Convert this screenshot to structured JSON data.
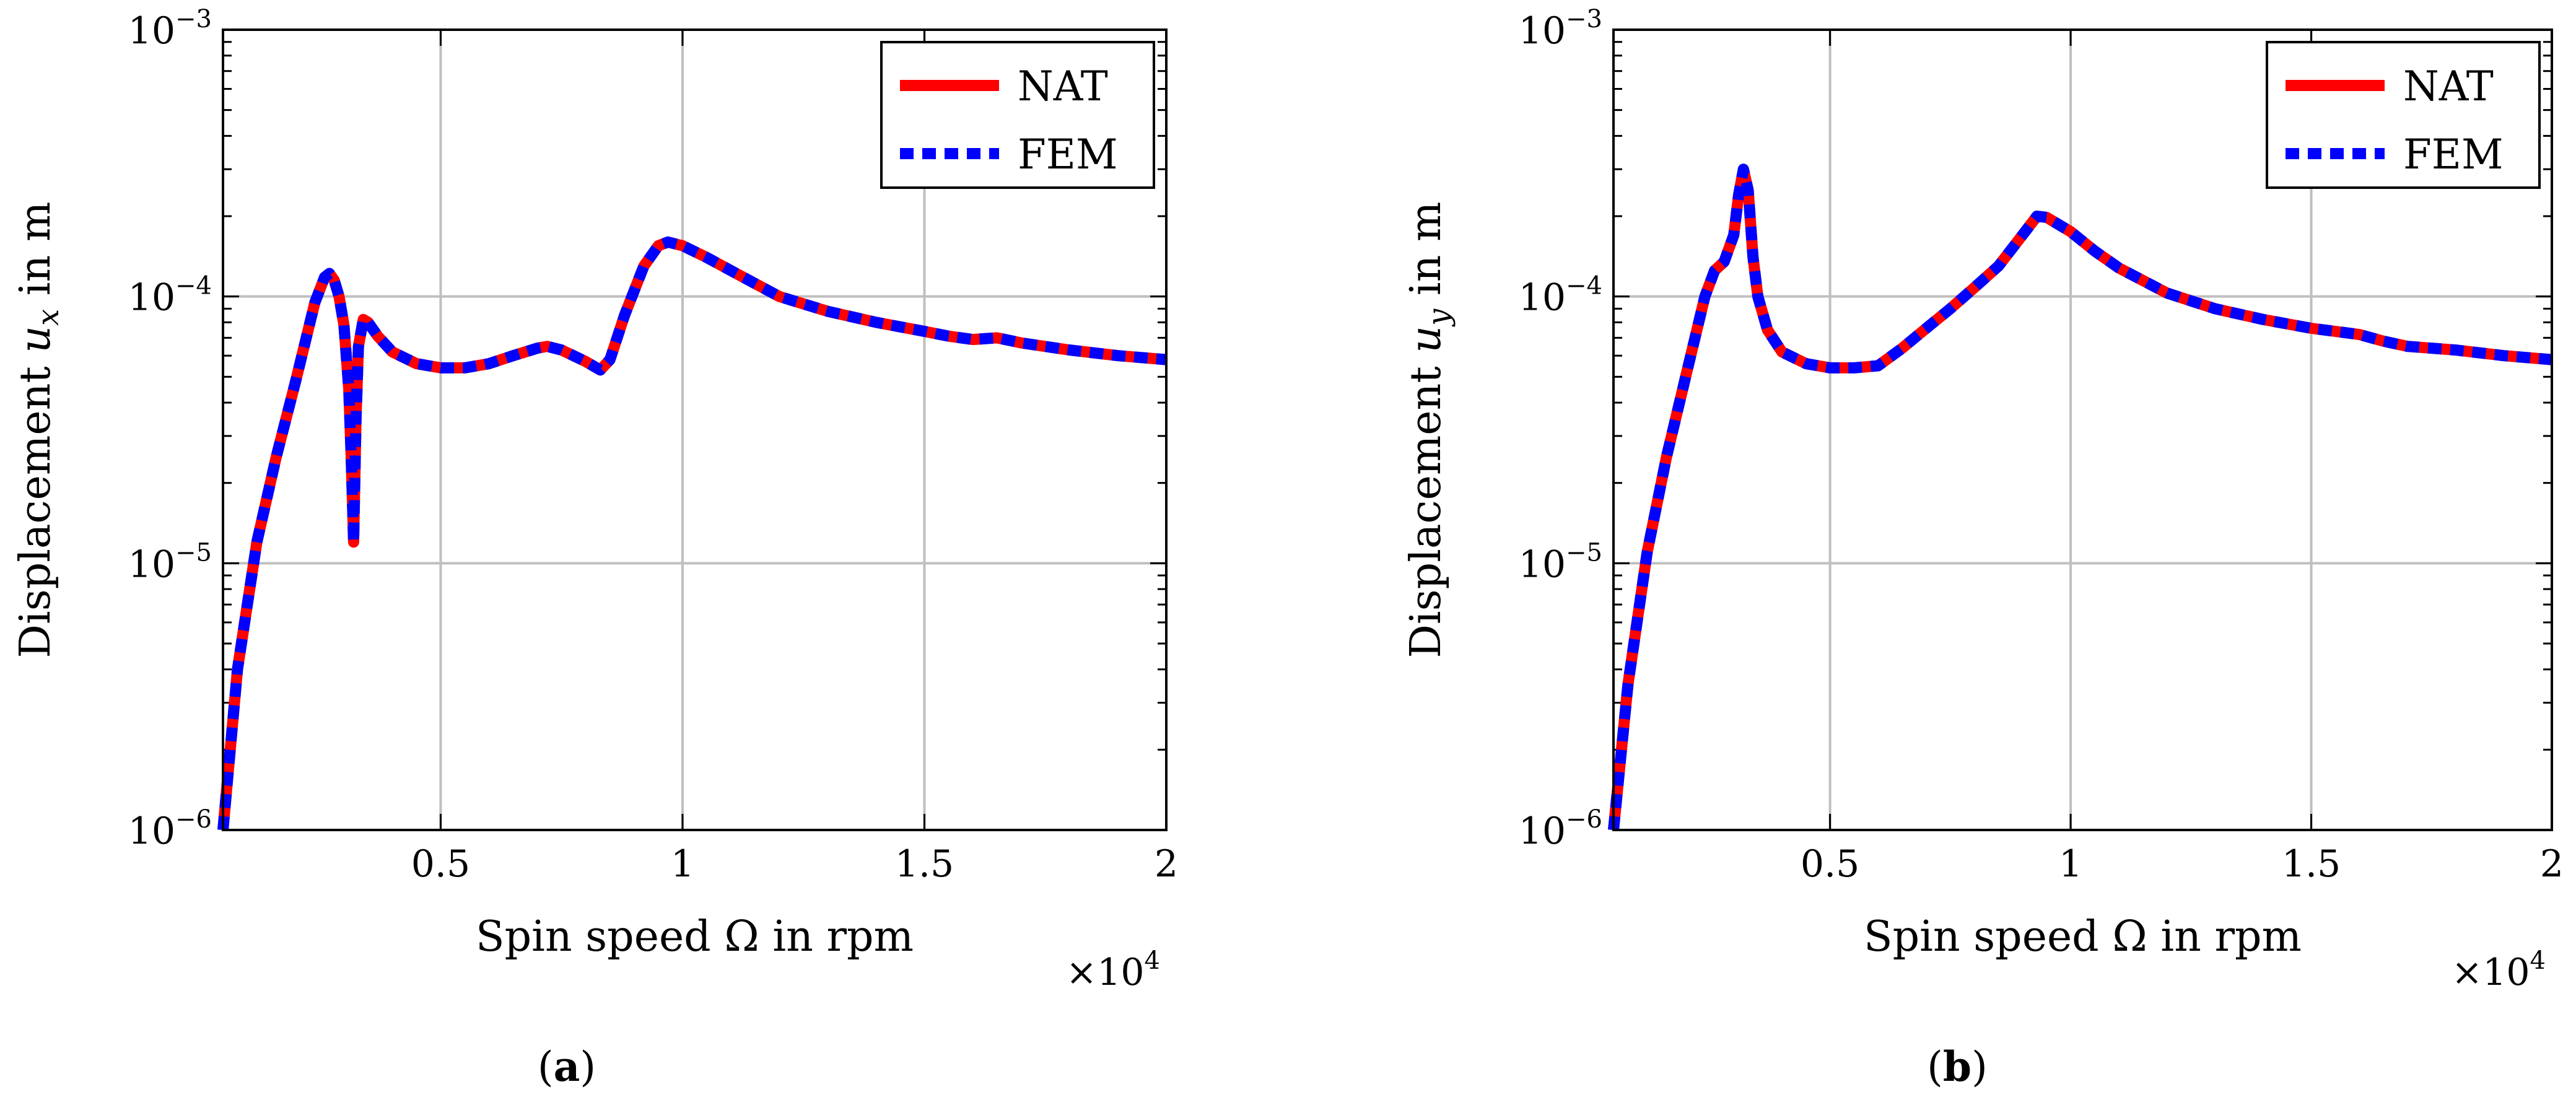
{
  "chart_data": [
    {
      "type": "line",
      "panel_label": "(a)",
      "xlabel": "Spin speed Ω in rpm",
      "ylabel_prefix": "Displacement ",
      "ylabel_symbol": "u",
      "ylabel_subscript": "x",
      "ylabel_suffix": " in m",
      "x_multiplier_label": "×10",
      "x_multiplier_exp": "4",
      "y_scale": "log",
      "xlim": [
        0.05,
        2.0
      ],
      "ylim": [
        1e-06,
        0.001
      ],
      "x_ticks": [
        0.5,
        1.0,
        1.5,
        2.0
      ],
      "x_tick_labels": [
        "0.5",
        "1",
        "1.5",
        "2"
      ],
      "y_ticks": [
        1e-06,
        1e-05,
        0.0001,
        0.001
      ],
      "y_tick_base": "10",
      "y_tick_exps": [
        "−6",
        "−5",
        "−4",
        "−3"
      ],
      "grid": true,
      "legend_position": "top-right",
      "series": [
        {
          "name": "NAT",
          "color": "#ff0000",
          "style": "solid",
          "x": [
            0.05,
            0.08,
            0.12,
            0.16,
            0.2,
            0.24,
            0.26,
            0.27,
            0.28,
            0.29,
            0.3,
            0.31,
            0.315,
            0.32,
            0.325,
            0.33,
            0.34,
            0.35,
            0.37,
            0.4,
            0.45,
            0.5,
            0.55,
            0.6,
            0.65,
            0.7,
            0.72,
            0.75,
            0.8,
            0.83,
            0.85,
            0.88,
            0.92,
            0.95,
            0.97,
            1.0,
            1.05,
            1.1,
            1.2,
            1.3,
            1.4,
            1.5,
            1.55,
            1.6,
            1.65,
            1.7,
            1.8,
            1.9,
            2.0
          ],
          "y": [
            1e-06,
            4e-06,
            1.2e-05,
            2.5e-05,
            4.8e-05,
            9.5e-05,
            0.000118,
            0.000122,
            0.000115,
            0.0001,
            7.8e-05,
            4.5e-05,
            2.5e-05,
            1.2e-05,
            3.5e-05,
            6.5e-05,
            8.2e-05,
            8e-05,
            7.1e-05,
            6.2e-05,
            5.6e-05,
            5.4e-05,
            5.4e-05,
            5.6e-05,
            6e-05,
            6.4e-05,
            6.5e-05,
            6.3e-05,
            5.7e-05,
            5.3e-05,
            5.8e-05,
            8.5e-05,
            0.00013,
            0.000155,
            0.00016,
            0.000155,
            0.00014,
            0.000125,
            0.0001,
            8.8e-05,
            8e-05,
            7.4e-05,
            7.1e-05,
            6.9e-05,
            7e-05,
            6.7e-05,
            6.3e-05,
            6e-05,
            5.8e-05
          ]
        },
        {
          "name": "FEM",
          "color": "#0000ff",
          "style": "dashed",
          "x": [
            0.05,
            0.08,
            0.12,
            0.16,
            0.2,
            0.24,
            0.26,
            0.27,
            0.28,
            0.29,
            0.3,
            0.31,
            0.315,
            0.32,
            0.325,
            0.33,
            0.34,
            0.35,
            0.37,
            0.4,
            0.45,
            0.5,
            0.55,
            0.6,
            0.65,
            0.7,
            0.72,
            0.75,
            0.8,
            0.83,
            0.85,
            0.88,
            0.92,
            0.95,
            0.97,
            1.0,
            1.05,
            1.1,
            1.2,
            1.3,
            1.4,
            1.5,
            1.55,
            1.6,
            1.65,
            1.7,
            1.8,
            1.9,
            2.0
          ],
          "y": [
            1e-06,
            4e-06,
            1.2e-05,
            2.5e-05,
            4.8e-05,
            9.5e-05,
            0.000118,
            0.000122,
            0.000115,
            0.0001,
            7.8e-05,
            4.5e-05,
            2.5e-05,
            1.2e-05,
            3.5e-05,
            6.5e-05,
            8.2e-05,
            8e-05,
            7.1e-05,
            6.2e-05,
            5.6e-05,
            5.4e-05,
            5.4e-05,
            5.6e-05,
            6e-05,
            6.4e-05,
            6.5e-05,
            6.3e-05,
            5.7e-05,
            5.3e-05,
            5.8e-05,
            8.5e-05,
            0.00013,
            0.000155,
            0.00016,
            0.000155,
            0.00014,
            0.000125,
            0.0001,
            8.8e-05,
            8e-05,
            7.4e-05,
            7.1e-05,
            6.9e-05,
            7e-05,
            6.7e-05,
            6.3e-05,
            6e-05,
            5.8e-05
          ]
        }
      ]
    },
    {
      "type": "line",
      "panel_label": "(b)",
      "xlabel": "Spin speed Ω in rpm",
      "ylabel_prefix": "Displacement ",
      "ylabel_symbol": "u",
      "ylabel_subscript": "y",
      "ylabel_suffix": " in m",
      "x_multiplier_label": "×10",
      "x_multiplier_exp": "4",
      "y_scale": "log",
      "xlim": [
        0.05,
        2.0
      ],
      "ylim": [
        1e-06,
        0.001
      ],
      "x_ticks": [
        0.5,
        1.0,
        1.5,
        2.0
      ],
      "x_tick_labels": [
        "0.5",
        "1",
        "1.5",
        "2"
      ],
      "y_ticks": [
        1e-06,
        1e-05,
        0.0001,
        0.001
      ],
      "y_tick_base": "10",
      "y_tick_exps": [
        "−6",
        "−5",
        "−4",
        "−3"
      ],
      "grid": true,
      "legend_position": "top-right",
      "series": [
        {
          "name": "NAT",
          "color": "#ff0000",
          "style": "solid",
          "x": [
            0.05,
            0.08,
            0.12,
            0.16,
            0.2,
            0.24,
            0.26,
            0.28,
            0.3,
            0.31,
            0.32,
            0.33,
            0.34,
            0.35,
            0.37,
            0.4,
            0.45,
            0.5,
            0.55,
            0.6,
            0.65,
            0.7,
            0.75,
            0.8,
            0.85,
            0.9,
            0.93,
            0.95,
            1.0,
            1.05,
            1.1,
            1.2,
            1.3,
            1.4,
            1.5,
            1.55,
            1.6,
            1.65,
            1.7,
            1.8,
            1.9,
            2.0
          ],
          "y": [
            1e-06,
            3.5e-06,
            1.1e-05,
            2.5e-05,
            5e-05,
            0.0001,
            0.000125,
            0.000135,
            0.00017,
            0.00024,
            0.0003,
            0.00025,
            0.00014,
            0.0001,
            7.5e-05,
            6.2e-05,
            5.6e-05,
            5.4e-05,
            5.4e-05,
            5.5e-05,
            6.4e-05,
            7.6e-05,
            9e-05,
            0.000108,
            0.00013,
            0.00017,
            0.0002,
            0.000198,
            0.000175,
            0.000148,
            0.000128,
            0.000103,
            9e-05,
            8.2e-05,
            7.6e-05,
            7.4e-05,
            7.2e-05,
            6.8e-05,
            6.5e-05,
            6.3e-05,
            6e-05,
            5.8e-05
          ]
        },
        {
          "name": "FEM",
          "color": "#0000ff",
          "style": "dashed",
          "x": [
            0.05,
            0.08,
            0.12,
            0.16,
            0.2,
            0.24,
            0.26,
            0.28,
            0.3,
            0.31,
            0.32,
            0.33,
            0.34,
            0.35,
            0.37,
            0.4,
            0.45,
            0.5,
            0.55,
            0.6,
            0.65,
            0.7,
            0.75,
            0.8,
            0.85,
            0.9,
            0.93,
            0.95,
            1.0,
            1.05,
            1.1,
            1.2,
            1.3,
            1.4,
            1.5,
            1.55,
            1.6,
            1.65,
            1.7,
            1.8,
            1.9,
            2.0
          ],
          "y": [
            1e-06,
            3.5e-06,
            1.1e-05,
            2.5e-05,
            5e-05,
            0.0001,
            0.000125,
            0.000135,
            0.00017,
            0.00024,
            0.0003,
            0.00025,
            0.00014,
            0.0001,
            7.5e-05,
            6.2e-05,
            5.6e-05,
            5.4e-05,
            5.4e-05,
            5.5e-05,
            6.4e-05,
            7.6e-05,
            9e-05,
            0.000108,
            0.00013,
            0.00017,
            0.0002,
            0.000198,
            0.000175,
            0.000148,
            0.000128,
            0.000103,
            9e-05,
            8.2e-05,
            7.6e-05,
            7.4e-05,
            7.2e-05,
            6.8e-05,
            6.5e-05,
            6.3e-05,
            6e-05,
            5.8e-05
          ]
        }
      ]
    }
  ]
}
